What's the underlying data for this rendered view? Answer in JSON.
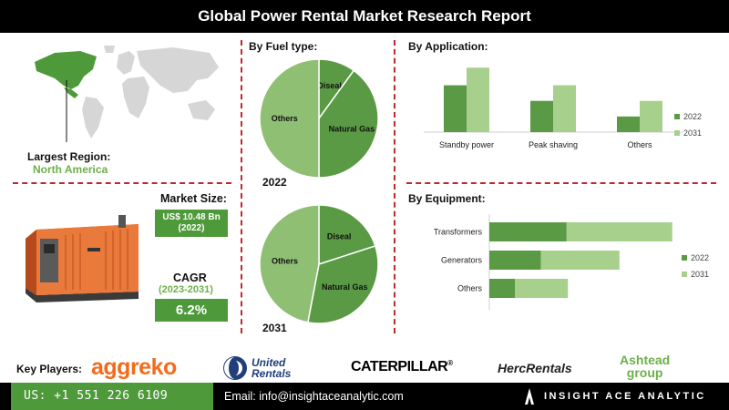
{
  "title": "Global Power Rental Market Research Report",
  "region": {
    "label": "Largest Region:",
    "value": "North America"
  },
  "market_size": {
    "label": "Market Size:",
    "value_line1": "US$ 10.48 Bn",
    "value_line2": "(2022)"
  },
  "cagr": {
    "label": "CAGR",
    "period": "(2023-2031)",
    "value": "6.2%"
  },
  "sections": {
    "fuel": "By Fuel type:",
    "application": "By Application:",
    "equipment": "By Equipment:"
  },
  "key_players_label": "Key Players:",
  "players": {
    "aggreko": "aggreko",
    "united_1": "United",
    "united_2": "Rentals",
    "caterpillar": "CATERPILLAR",
    "herc": "HercRentals",
    "ashtead_1": "Ashtead",
    "ashtead_2": "group"
  },
  "footer": {
    "phone": "US: +1 551 226 6109",
    "email": "Email: info@insightaceanalytic.com",
    "brand": "INSIGHT ACE ANALYTIC"
  },
  "colors": {
    "dark_green": "#4e9a3a",
    "mid_green": "#5b9a45",
    "light_green": "#a8d08d",
    "pie_light": "#8fbf73",
    "red_dash": "#c0282d",
    "orange": "#f26b1d"
  },
  "chart_data": [
    {
      "type": "pie",
      "title": "By Fuel type:",
      "year": "2022",
      "categories": [
        "Diseal",
        "Natural Gas",
        "Others"
      ],
      "values": [
        10,
        40,
        50
      ]
    },
    {
      "type": "pie",
      "year": "2031",
      "categories": [
        "Diseal",
        "Natural Gas",
        "Others"
      ],
      "values": [
        20,
        33,
        47
      ]
    },
    {
      "type": "bar",
      "title": "By Application:",
      "categories": [
        "Standby power",
        "Peak shaving",
        "Others"
      ],
      "series": [
        {
          "name": "2022",
          "values": [
            48,
            32,
            16
          ]
        },
        {
          "name": "2031",
          "values": [
            66,
            48,
            32
          ]
        }
      ],
      "ylim": [
        0,
        70
      ],
      "legend": "right"
    },
    {
      "type": "bar",
      "orientation": "horizontal",
      "stacked": true,
      "title": "By Equipment:",
      "categories": [
        "Transformers",
        "Generators",
        "Others"
      ],
      "series": [
        {
          "name": "2022",
          "values": [
            60,
            40,
            20
          ]
        },
        {
          "name": "2031",
          "values": [
            82,
            61,
            41
          ]
        }
      ],
      "xlim": [
        0,
        145
      ],
      "legend": "right"
    }
  ]
}
